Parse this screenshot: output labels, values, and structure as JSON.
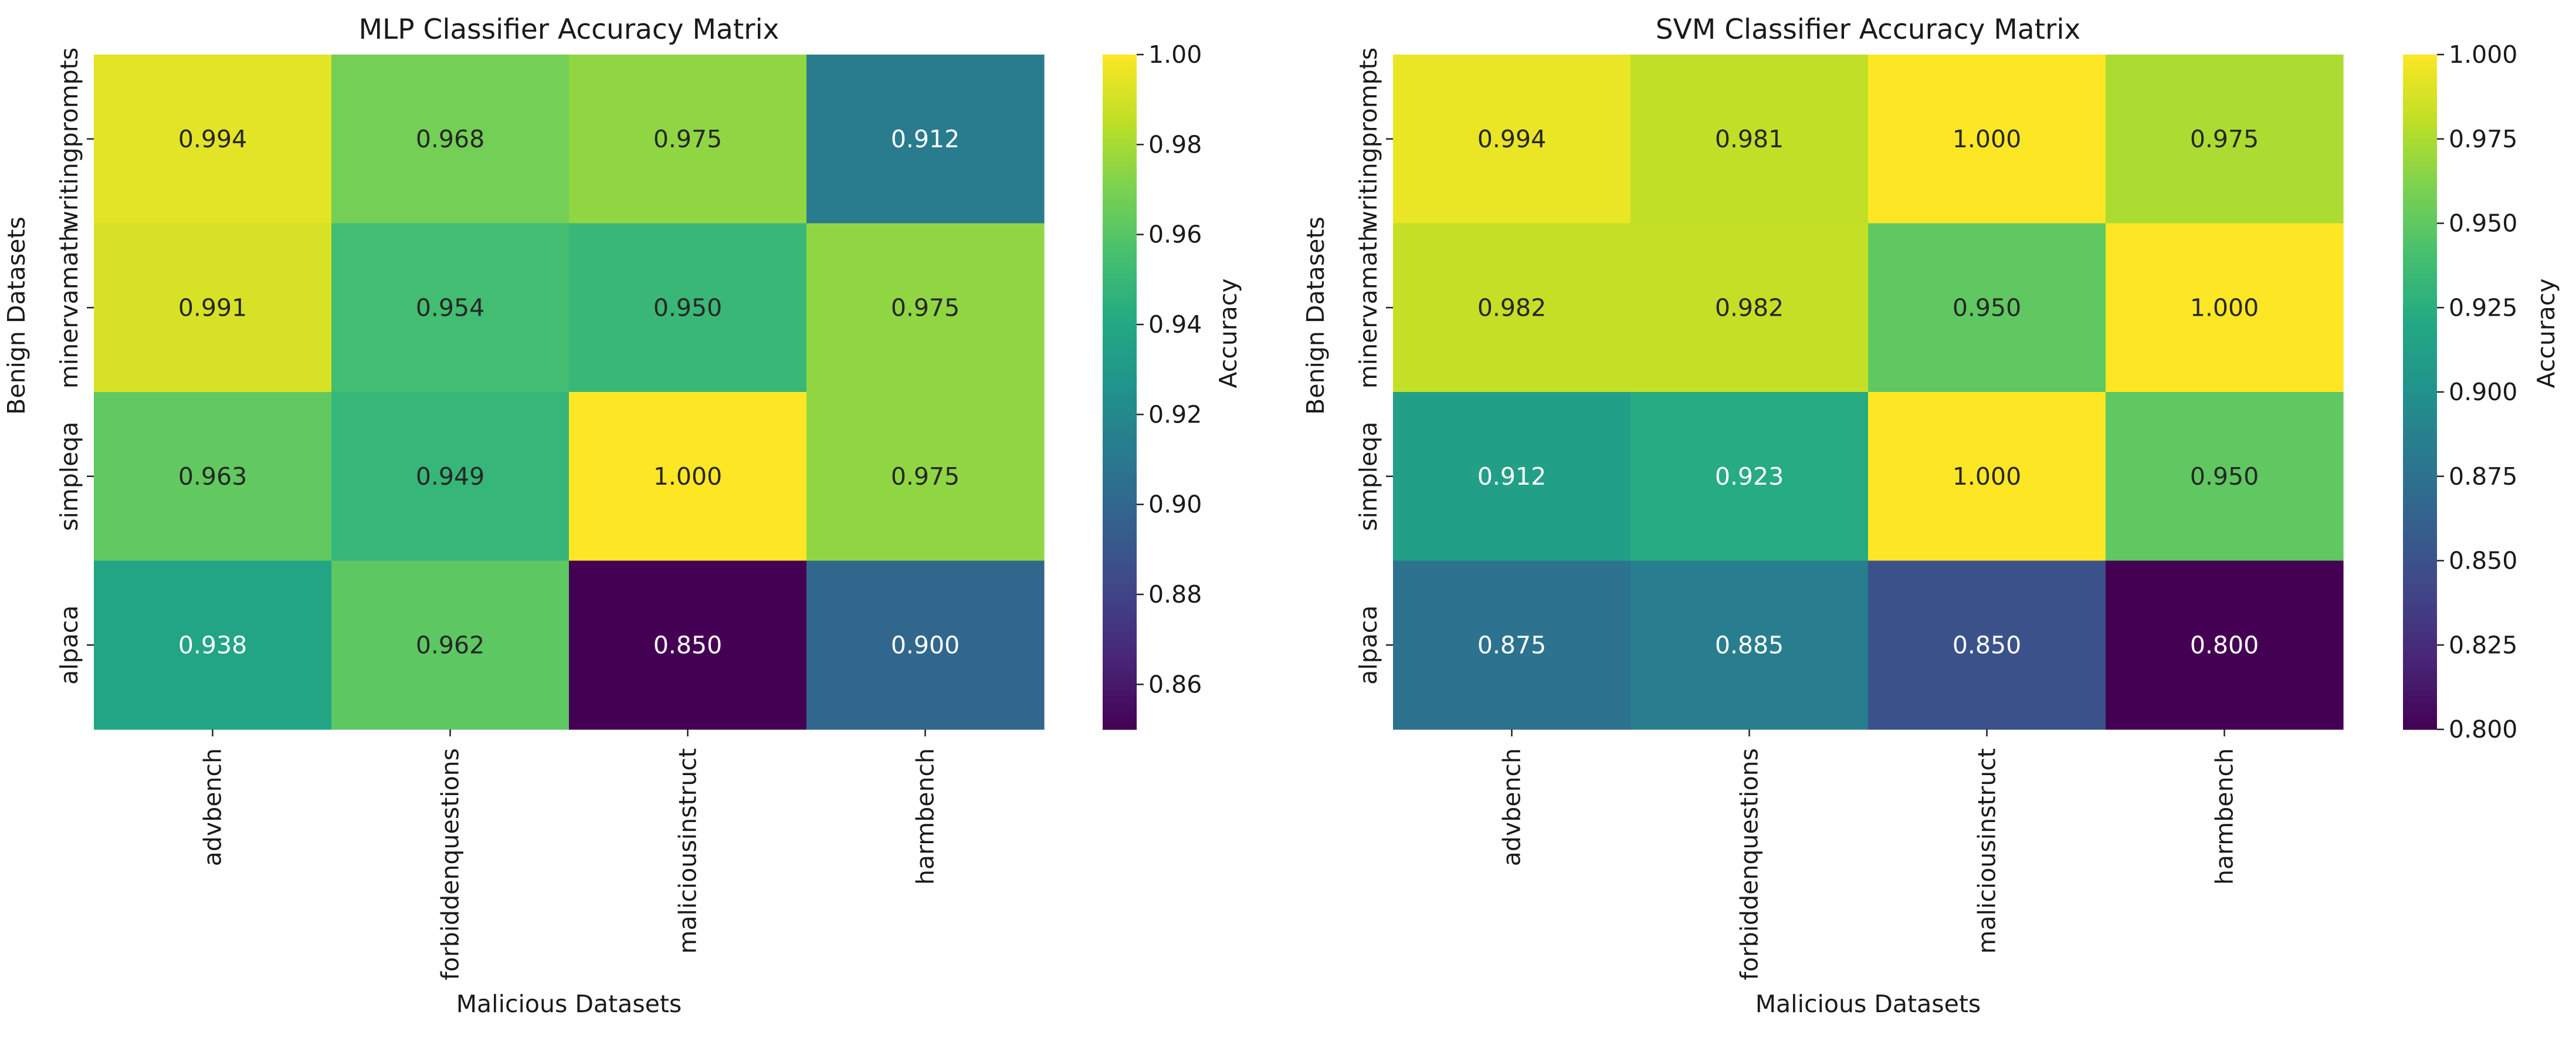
{
  "chart_data": [
    {
      "type": "heatmap",
      "title": "MLP Classifier Accuracy Matrix",
      "xlabel": "Malicious Datasets",
      "ylabel": "Benign Datasets",
      "x_categories": [
        "advbench",
        "forbiddenquestions",
        "maliciousinstruct",
        "harmbench"
      ],
      "y_categories": [
        "writingprompts",
        "minervamath",
        "simpleqa",
        "alpaca"
      ],
      "values": [
        [
          0.994,
          0.968,
          0.975,
          0.912
        ],
        [
          0.991,
          0.954,
          0.95,
          0.975
        ],
        [
          0.963,
          0.949,
          1.0,
          0.975
        ],
        [
          0.938,
          0.962,
          0.85,
          0.9
        ]
      ],
      "colorbar": {
        "label": "Accuracy",
        "range": [
          0.85,
          1.0
        ],
        "ticks": [
          0.86,
          0.88,
          0.9,
          0.92,
          0.94,
          0.96,
          0.98,
          1.0
        ],
        "tick_labels": [
          "0.86",
          "0.88",
          "0.90",
          "0.92",
          "0.94",
          "0.96",
          "0.98",
          "1.00"
        ]
      },
      "colormap": "viridis"
    },
    {
      "type": "heatmap",
      "title": "SVM Classifier Accuracy Matrix",
      "xlabel": "Malicious Datasets",
      "ylabel": "Benign Datasets",
      "x_categories": [
        "advbench",
        "forbiddenquestions",
        "maliciousinstruct",
        "harmbench"
      ],
      "y_categories": [
        "writingprompts",
        "minervamath",
        "simpleqa",
        "alpaca"
      ],
      "values": [
        [
          0.994,
          0.981,
          1.0,
          0.975
        ],
        [
          0.982,
          0.982,
          0.95,
          1.0
        ],
        [
          0.912,
          0.923,
          1.0,
          0.95
        ],
        [
          0.875,
          0.885,
          0.85,
          0.8
        ]
      ],
      "colorbar": {
        "label": "Accuracy",
        "range": [
          0.8,
          1.0
        ],
        "ticks": [
          0.8,
          0.825,
          0.85,
          0.875,
          0.9,
          0.925,
          0.95,
          0.975,
          1.0
        ],
        "tick_labels": [
          "0.800",
          "0.825",
          "0.850",
          "0.875",
          "0.900",
          "0.925",
          "0.950",
          "0.975",
          "1.000"
        ]
      },
      "colormap": "viridis"
    }
  ]
}
